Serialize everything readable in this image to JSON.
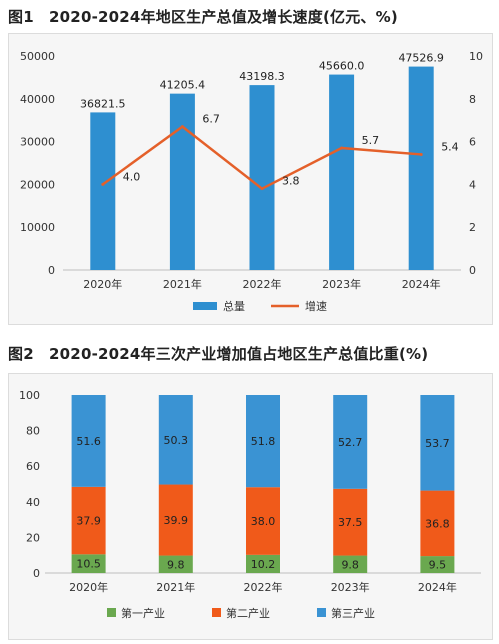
{
  "figure1": {
    "title": "图1　2020-2024年地区生产总值及增长速度(亿元、%)"
  },
  "figure2": {
    "title": "图2　2020-2024年三次产业增加值占地区生产总值比重(%)"
  },
  "chart_data": [
    {
      "type": "bar",
      "title": "图1　2020-2024年地区生产总值及增长速度(亿元、%)",
      "categories": [
        "2020年",
        "2021年",
        "2022年",
        "2023年",
        "2024年"
      ],
      "series": [
        {
          "name": "总量",
          "type": "bar",
          "axis": "left",
          "values": [
            36821.5,
            41205.4,
            43198.3,
            45660.0,
            47526.9
          ],
          "labels": [
            "36821.5",
            "41205.4",
            "43198.3",
            "45660.0",
            "47526.9"
          ],
          "color": "#2e8fd0"
        },
        {
          "name": "增速",
          "type": "line",
          "axis": "right",
          "values": [
            4.0,
            6.7,
            3.8,
            5.7,
            5.4
          ],
          "labels": [
            "4.0",
            "6.7",
            "3.8",
            "5.7",
            "5.4"
          ],
          "color": "#e4602a"
        }
      ],
      "ylim": [
        0,
        50000
      ],
      "y_ticks": [
        "0",
        "10000",
        "20000",
        "30000",
        "40000",
        "50000"
      ],
      "y2lim": [
        0,
        10
      ],
      "y2_ticks": [
        "0",
        "2",
        "4",
        "6",
        "8",
        "10"
      ],
      "legend": "bottom",
      "grid": false
    },
    {
      "type": "bar",
      "stacked": true,
      "title": "图2　2020-2024年三次产业增加值占地区生产总值比重(%)",
      "categories": [
        "2020年",
        "2021年",
        "2022年",
        "2023年",
        "2024年"
      ],
      "series": [
        {
          "name": "第一产业",
          "values": [
            10.5,
            9.8,
            10.2,
            9.8,
            9.5
          ],
          "labels": [
            "10.5",
            "9.8",
            "10.2",
            "9.8",
            "9.5"
          ],
          "color": "#6aa84f"
        },
        {
          "name": "第二产业",
          "values": [
            37.9,
            39.9,
            38.0,
            37.5,
            36.8
          ],
          "labels": [
            "37.9",
            "39.9",
            "38.0",
            "37.5",
            "36.8"
          ],
          "color": "#f05a1a"
        },
        {
          "name": "第三产业",
          "values": [
            51.6,
            50.3,
            51.8,
            52.7,
            53.7
          ],
          "labels": [
            "51.6",
            "50.3",
            "51.8",
            "52.7",
            "53.7"
          ],
          "color": "#3a93d3"
        }
      ],
      "ylim": [
        0,
        100
      ],
      "y_ticks": [
        "0",
        "20",
        "40",
        "60",
        "80",
        "100"
      ],
      "legend": "bottom",
      "grid": false
    }
  ]
}
